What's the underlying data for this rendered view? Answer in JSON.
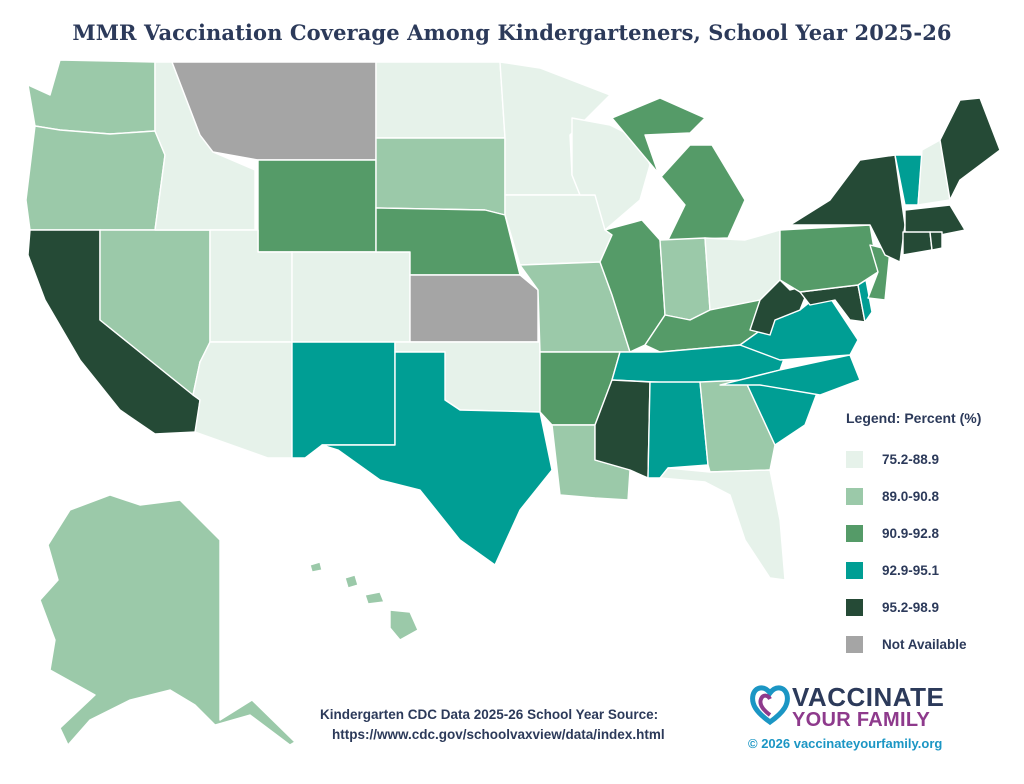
{
  "title": "MMR Vaccination Coverage Among Kindergarteners, School Year 2025-26",
  "legend": {
    "title": "Legend: Percent (%)",
    "items": [
      {
        "label": "75.2-88.9",
        "color": "#e6f2ea"
      },
      {
        "label": "89.0-90.8",
        "color": "#9bc9a9"
      },
      {
        "label": "90.9-92.8",
        "color": "#559b68"
      },
      {
        "label": "92.9-95.1",
        "color": "#009e94"
      },
      {
        "label": "95.2-98.9",
        "color": "#254a36"
      },
      {
        "label": "Not Available",
        "color": "#a5a5a5"
      }
    ]
  },
  "states": {
    "WA": "89.0-90.8",
    "OR": "89.0-90.8",
    "CA": "95.2-98.9",
    "NV": "89.0-90.8",
    "ID": "75.2-88.9",
    "MT": "Not Available",
    "WY": "90.9-92.8",
    "UT": "75.2-88.9",
    "AZ": "75.2-88.9",
    "CO": "75.2-88.9",
    "NM": "92.9-95.1",
    "ND": "75.2-88.9",
    "SD": "89.0-90.8",
    "NE": "90.9-92.8",
    "KS": "Not Available",
    "OK": "75.2-88.9",
    "TX": "92.9-95.1",
    "MN": "75.2-88.9",
    "IA": "75.2-88.9",
    "MO": "89.0-90.8",
    "AR": "90.9-92.8",
    "LA": "89.0-90.8",
    "WI": "75.2-88.9",
    "IL": "90.9-92.8",
    "MI": "90.9-92.8",
    "IN": "89.0-90.8",
    "OH": "75.2-88.9",
    "KY": "90.9-92.8",
    "TN": "92.9-95.1",
    "MS": "95.2-98.9",
    "AL": "92.9-95.1",
    "GA": "89.0-90.8",
    "FL": "75.2-88.9",
    "SC": "92.9-95.1",
    "NC": "92.9-95.1",
    "VA": "92.9-95.1",
    "WV": "95.2-98.9",
    "MD": "95.2-98.9",
    "DE": "92.9-95.1",
    "NJ": "90.9-92.8",
    "PA": "90.9-92.8",
    "NY": "95.2-98.9",
    "CT": "95.2-98.9",
    "RI": "95.2-98.9",
    "MA": "95.2-98.9",
    "VT": "92.9-95.1",
    "NH": "75.2-88.9",
    "ME": "95.2-98.9",
    "AK": "89.0-90.8",
    "HI": "89.0-90.8"
  },
  "source": {
    "line1": "Kindergarten CDC Data 2025-26 School Year Source:",
    "line2": "https://www.cdc.gov/schoolvaxview/data/index.html"
  },
  "brand": {
    "line1": "VACCINATE",
    "line2": "YOUR FAMILY",
    "copyright": "© 2026 vaccinateyourfamily.org",
    "logo_colors": [
      "#1b96c4",
      "#8e3a8c"
    ]
  }
}
